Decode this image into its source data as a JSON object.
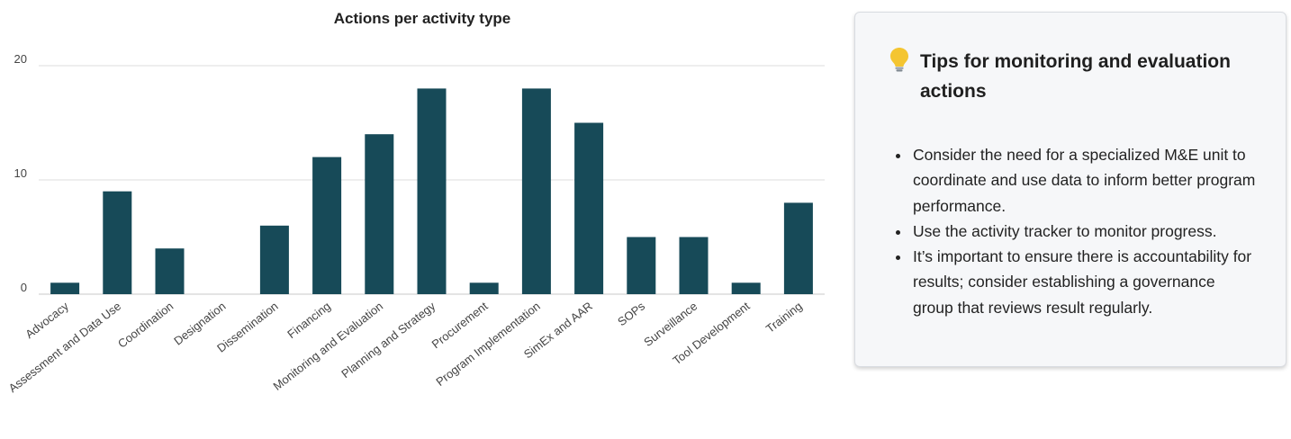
{
  "chart_data": {
    "type": "bar",
    "title": "Actions per activity type",
    "categories": [
      "Advocacy",
      "Assessment and Data Use",
      "Coordination",
      "Designation",
      "Dissemination",
      "Financing",
      "Monitoring and Evaluation",
      "Planning and Strategy",
      "Procurement",
      "Program Implementation",
      "SimEx and AAR",
      "SOPs",
      "Surveillance",
      "Tool Development",
      "Training"
    ],
    "values": [
      1,
      9,
      4,
      0,
      6,
      12,
      14,
      18,
      1,
      18,
      15,
      5,
      5,
      1,
      8
    ],
    "yticks": [
      "0",
      "10",
      "20"
    ],
    "ylim": [
      0,
      20
    ],
    "grid": true,
    "bar_color": "#174a58",
    "xlabel": "",
    "ylabel": ""
  },
  "tips": {
    "icon": "lightbulb-icon",
    "title": "Tips for monitoring and evaluation actions",
    "items": [
      "Consider the need for a specialized M&E unit to coordinate and use data to inform better program performance.",
      "Use the activity tracker to monitor progress.",
      "It’s important to ensure there is accountability for results; consider establishing a governance group that reviews result regularly."
    ]
  }
}
